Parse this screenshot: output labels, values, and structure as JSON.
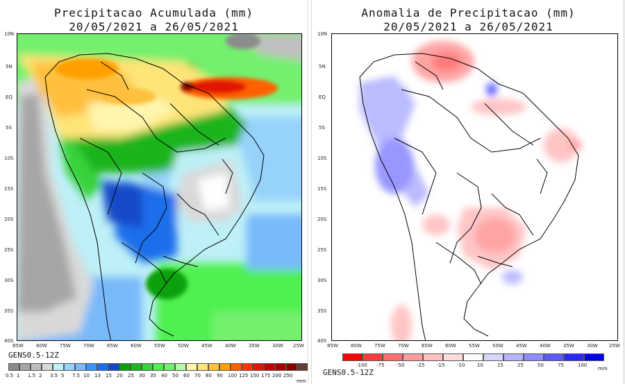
{
  "left": {
    "title": "Precipitacao Acumulada (mm)",
    "subtitle": "20/05/2021 a 26/05/2021",
    "model": "GENS0.5-12Z",
    "unit": "mm",
    "lat_labels": [
      "10N",
      "5N",
      "EQ",
      "5S",
      "10S",
      "15S",
      "20S",
      "25S",
      "30S",
      "35S",
      "40S"
    ],
    "lon_labels": [
      "85W",
      "80W",
      "75W",
      "70W",
      "65W",
      "60W",
      "55W",
      "50W",
      "45W",
      "40W",
      "35W",
      "30W",
      "25W"
    ],
    "colorbar": {
      "ticks": [
        "0.5",
        "1",
        "1.5",
        "2",
        "3.5",
        "5",
        "7.5",
        "10",
        "13",
        "15",
        "20",
        "25",
        "30",
        "35",
        "40",
        "50",
        "60",
        "70",
        "80",
        "90",
        "100",
        "125",
        "150",
        "175",
        "200",
        "250"
      ],
      "colors": [
        "#8c8c8c",
        "#a6a6a6",
        "#bfbfbf",
        "#d9d9d9",
        "#bdf0f7",
        "#96d2fa",
        "#78b9fa",
        "#3c95f5",
        "#1e6eeb",
        "#1448c8",
        "#0fa00f",
        "#1eb41e",
        "#37d23c",
        "#50f050",
        "#73f06e",
        "#b4faaa",
        "#fff5ac",
        "#ffe478",
        "#ffc03c",
        "#ffa000",
        "#ff6000",
        "#ff3200",
        "#e11400",
        "#c00000",
        "#a50000",
        "#870000",
        "#643b32"
      ]
    }
  },
  "right": {
    "title": "Anomalia de Precipitacao (mm)",
    "subtitle": "20/05/2021 a 26/05/2021",
    "model": "GENS0.5-12Z",
    "unit": "mm",
    "lat_labels": [
      "10N",
      "5N",
      "EQ",
      "5S",
      "10S",
      "15S",
      "20S",
      "25S",
      "30S",
      "35S",
      "40S"
    ],
    "lon_labels": [
      "85W",
      "80W",
      "75W",
      "70W",
      "65W",
      "60W",
      "55W",
      "50W",
      "45W",
      "40W",
      "35W",
      "30W",
      "25W"
    ],
    "colorbar": {
      "ticks": [
        "-100",
        "-75",
        "-50",
        "-25",
        "-15",
        "-10",
        "10",
        "15",
        "25",
        "50",
        "75",
        "100"
      ],
      "colors": [
        "#ff0000",
        "#ff3b3b",
        "#ff6e6e",
        "#ff9b9b",
        "#ffbfbf",
        "#ffdcdc",
        "#ffffff",
        "#d7d7ff",
        "#b4b4ff",
        "#8c8cff",
        "#5a5aff",
        "#2828ff",
        "#0000f0"
      ]
    }
  }
}
